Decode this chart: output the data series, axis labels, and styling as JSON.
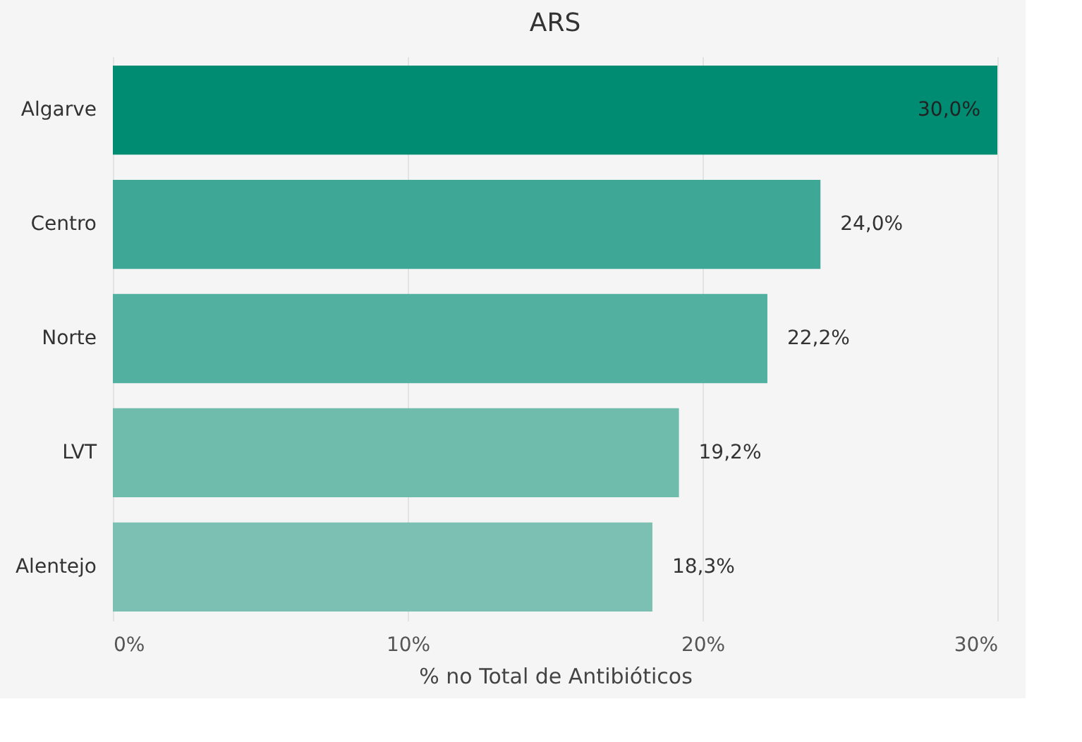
{
  "chart_data": {
    "type": "bar",
    "orientation": "horizontal",
    "title": "ARS",
    "xlabel": "% no Total de Antibióticos",
    "categories": [
      "Algarve",
      "Centro",
      "Norte",
      "LVT",
      "Alentejo"
    ],
    "values": [
      30.0,
      24.0,
      22.2,
      19.2,
      18.3
    ],
    "colors": [
      "#008c72",
      "#3fa796",
      "#52b0a0",
      "#6fbbac",
      "#7cc0b3"
    ],
    "value_labels": [
      "30,0%",
      "24,0%",
      "22,2%",
      "19,2%",
      "18,3%"
    ],
    "xlim": [
      0,
      30
    ],
    "xticks": [
      {
        "value": 0,
        "label": "0%"
      },
      {
        "value": 10,
        "label": "10%"
      },
      {
        "value": 20,
        "label": "20%"
      },
      {
        "value": 30,
        "label": "30%"
      }
    ],
    "grid": "x"
  }
}
